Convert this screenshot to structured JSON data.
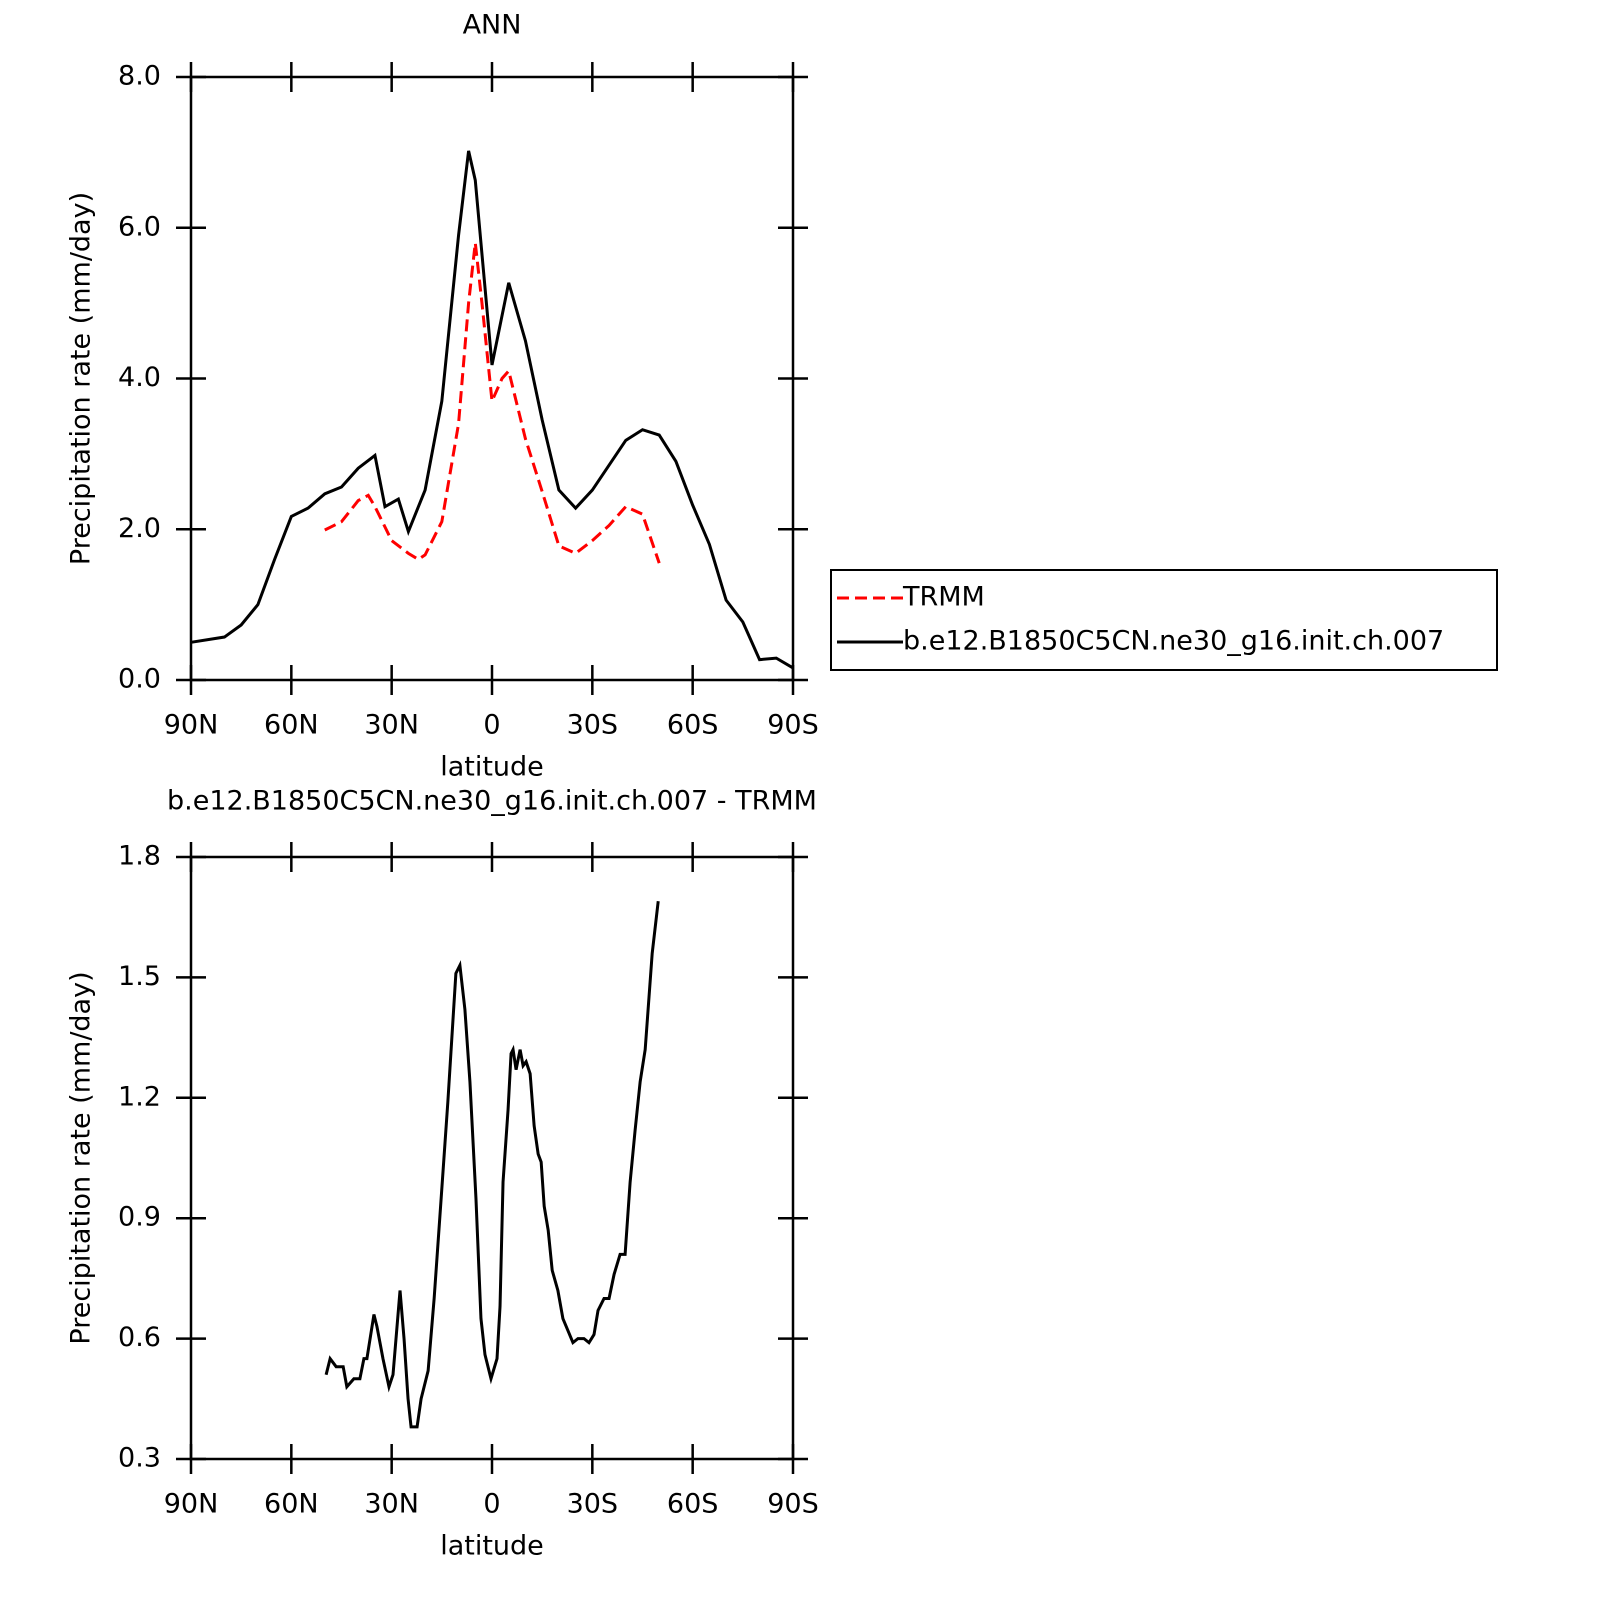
{
  "chart_data": [
    {
      "type": "line",
      "title": "ANN",
      "xlabel": "latitude",
      "ylabel": "Precipitation rate (mm/day)",
      "xlim": [
        90,
        -90
      ],
      "xticks": [
        {
          "value": 90,
          "label": "90N"
        },
        {
          "value": 60,
          "label": "60N"
        },
        {
          "value": 30,
          "label": "30N"
        },
        0,
        {
          "value": -30,
          "label": "30S"
        },
        {
          "value": -60,
          "label": "60S"
        },
        {
          "value": -90,
          "label": "90S"
        }
      ],
      "ylim": [
        0,
        8
      ],
      "yticks": [
        {
          "value": 0,
          "label": "0.0"
        },
        {
          "value": 2,
          "label": "2.0"
        },
        {
          "value": 4,
          "label": "4.0"
        },
        {
          "value": 6,
          "label": "6.0"
        },
        {
          "value": 8,
          "label": "8.0"
        }
      ],
      "legend": "right",
      "series": [
        {
          "name": "TRMM",
          "color": "#ff0000",
          "dash": true,
          "x": [
            50,
            45,
            40,
            37,
            35,
            30,
            25,
            22,
            20,
            15,
            10,
            7,
            5,
            3,
            0,
            -3,
            -5,
            -10,
            -15,
            -20,
            -25,
            -30,
            -35,
            -40,
            -45,
            -50
          ],
          "values": [
            1.99,
            2.1,
            2.38,
            2.45,
            2.3,
            1.85,
            1.68,
            1.6,
            1.66,
            2.1,
            3.4,
            5.0,
            5.8,
            5.0,
            3.7,
            4.0,
            4.1,
            3.2,
            2.5,
            1.78,
            1.68,
            1.85,
            2.05,
            2.3,
            2.2,
            1.55
          ]
        },
        {
          "name": "b.e12.B1850C5CN.ne30_g16.init.ch.007",
          "color": "#000000",
          "dash": false,
          "x": [
            90,
            80,
            75,
            70,
            65,
            60,
            55,
            50,
            45,
            40,
            35,
            32,
            28,
            25,
            20,
            15,
            10,
            7,
            5,
            0,
            -5,
            -10,
            -15,
            -20,
            -25,
            -30,
            -35,
            -40,
            -45,
            -50,
            -55,
            -60,
            -65,
            -70,
            -75,
            -80,
            -85,
            -90
          ],
          "values": [
            0.5,
            0.57,
            0.73,
            1.0,
            1.6,
            2.17,
            2.28,
            2.47,
            2.56,
            2.81,
            2.98,
            2.3,
            2.4,
            1.97,
            2.52,
            3.7,
            5.9,
            7.02,
            6.63,
            4.18,
            5.27,
            4.5,
            3.45,
            2.52,
            2.28,
            2.52,
            2.85,
            3.18,
            3.32,
            3.25,
            2.9,
            2.32,
            1.8,
            1.06,
            0.77,
            0.27,
            0.29,
            0.16
          ]
        }
      ]
    },
    {
      "type": "line",
      "title": "b.e12.B1850C5CN.ne30_g16.init.ch.007 - TRMM",
      "xlabel": "latitude",
      "ylabel": "Precipitation rate (mm/day)",
      "xlim": [
        90,
        -90
      ],
      "xticks": [
        {
          "value": 90,
          "label": "90N"
        },
        {
          "value": 60,
          "label": "60N"
        },
        {
          "value": 30,
          "label": "30N"
        },
        0,
        {
          "value": -30,
          "label": "30S"
        },
        {
          "value": -60,
          "label": "60S"
        },
        {
          "value": -90,
          "label": "90S"
        }
      ],
      "ylim": [
        0.3,
        1.8
      ],
      "yticks": [
        0.3,
        0.6,
        0.9,
        1.2,
        1.5,
        1.8
      ],
      "series": [
        {
          "color": "#000000",
          "dash": false,
          "x": [
            49.6,
            48.4,
            46.6,
            44.5,
            43.4,
            41.3,
            39.5,
            38.3,
            37.4,
            35.3,
            34.4,
            32.6,
            30.8,
            29.6,
            27.5,
            26.3,
            25.1,
            24.2,
            22.4,
            21.2,
            19.1,
            17.3,
            15.2,
            13.2,
            10.8,
            9.6,
            8.1,
            6.6,
            4.8,
            3.3,
            2.1,
            0.3,
            -1.5,
            -2.4,
            -3.3,
            -4.8,
            -5.7,
            -6.3,
            -7.2,
            -8.4,
            -9.3,
            -10.2,
            -11.4,
            -12.6,
            -13.8,
            -14.7,
            -15.6,
            -16.8,
            -18,
            -19.7,
            -21.2,
            -22.7,
            -24.2,
            -25.7,
            -27.5,
            -29,
            -30.5,
            -31.7,
            -33.5,
            -35,
            -36.5,
            -38.3,
            -39.8,
            -41.3,
            -42.8,
            -44.3,
            -45.8,
            -47.9,
            -49.7
          ],
          "values": [
            0.51,
            0.55,
            0.53,
            0.53,
            0.48,
            0.5,
            0.5,
            0.55,
            0.55,
            0.66,
            0.63,
            0.55,
            0.48,
            0.51,
            0.72,
            0.6,
            0.45,
            0.38,
            0.38,
            0.45,
            0.52,
            0.7,
            0.95,
            1.19,
            1.51,
            1.53,
            1.42,
            1.24,
            0.95,
            0.65,
            0.56,
            0.5,
            0.55,
            0.68,
            0.99,
            1.17,
            1.31,
            1.32,
            1.27,
            1.32,
            1.28,
            1.29,
            1.26,
            1.13,
            1.06,
            1.04,
            0.93,
            0.87,
            0.77,
            0.72,
            0.65,
            0.62,
            0.59,
            0.6,
            0.6,
            0.59,
            0.61,
            0.67,
            0.7,
            0.7,
            0.76,
            0.81,
            0.81,
            0.99,
            1.12,
            1.24,
            1.32,
            1.56,
            1.69
          ]
        }
      ]
    }
  ]
}
